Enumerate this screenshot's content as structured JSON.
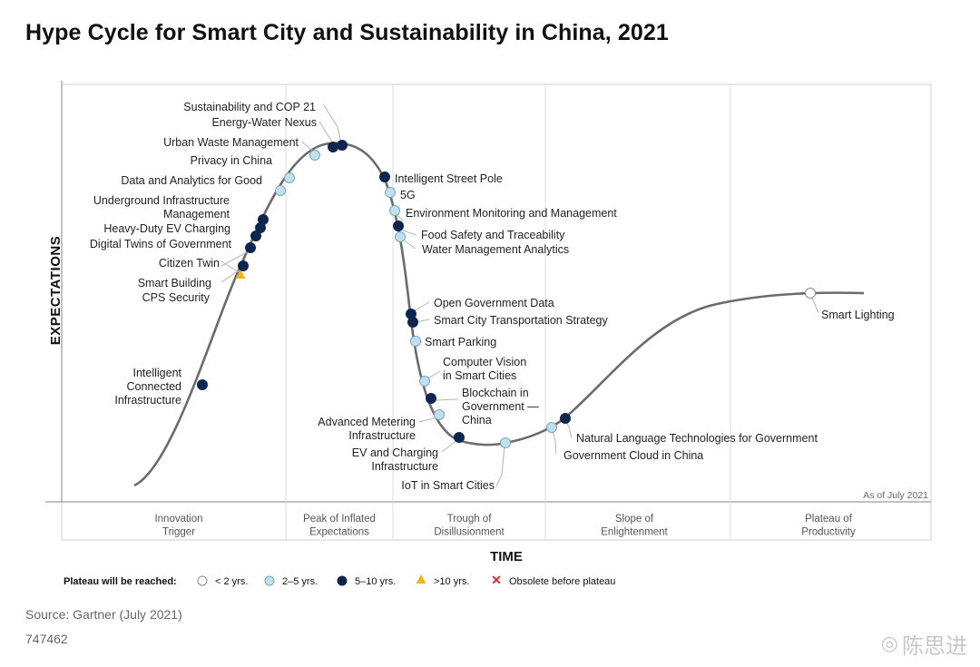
{
  "title": "Hype Cycle for Smart City and Sustainability in China, 2021",
  "source": "Source: Gartner (July 2021)",
  "doc_id": "747462",
  "watermark": "陈思进",
  "chart_data": {
    "type": "scatter",
    "title": "Hype Cycle for Smart City and Sustainability in China, 2021",
    "xlabel": "TIME",
    "ylabel": "EXPECTATIONS",
    "as_of": "As of July 2021",
    "phases": [
      [
        "Innovation",
        "Trigger"
      ],
      [
        "Peak of Inflated",
        "Expectations"
      ],
      [
        "Trough of",
        "Disillusionment"
      ],
      [
        "Slope of",
        "Enlightenment"
      ],
      [
        "Plateau of",
        "Productivity"
      ]
    ],
    "legend": {
      "title": "Plateau will be reached:",
      "items": [
        {
          "key": "lt2",
          "label": "< 2 yrs.",
          "color": "#ffffff"
        },
        {
          "key": "2to5",
          "label": "2–5 yrs.",
          "color": "#bfe0ee"
        },
        {
          "key": "5to10",
          "label": "5–10 yrs.",
          "color": "#0d2650"
        },
        {
          "key": "gt10",
          "label": ">10 yrs.",
          "color": "#f2b41c"
        },
        {
          "key": "obsolete",
          "label": "Obsolete before plateau",
          "color": "#e0282e"
        }
      ]
    },
    "points": [
      {
        "name": "Intelligent Connected Infrastructure",
        "lines": [
          "Intelligent",
          "Connected",
          "Infrastructure"
        ],
        "cat": "5to10"
      },
      {
        "name": "CPS Security",
        "lines": [
          "CPS Security"
        ],
        "cat": "gt10"
      },
      {
        "name": "Smart Building",
        "lines": [
          "Smart Building"
        ],
        "cat": "5to10"
      },
      {
        "name": "Citizen Twin",
        "lines": [
          "Citizen Twin"
        ],
        "cat": "5to10"
      },
      {
        "name": "Digital Twins of Government",
        "lines": [
          "Digital Twins of Government"
        ],
        "cat": "5to10"
      },
      {
        "name": "Heavy-Duty EV Charging",
        "lines": [
          "Heavy-Duty EV Charging"
        ],
        "cat": "5to10"
      },
      {
        "name": "Underground Infrastructure Management",
        "lines": [
          "Underground Infrastructure",
          "Management"
        ],
        "cat": "5to10"
      },
      {
        "name": "Data and Analytics for Good",
        "lines": [
          "Data and Analytics for Good"
        ],
        "cat": "2to5"
      },
      {
        "name": "Privacy in China",
        "lines": [
          "Privacy in China"
        ],
        "cat": "2to5"
      },
      {
        "name": "Urban Waste Management",
        "lines": [
          "Urban Waste Management"
        ],
        "cat": "2to5"
      },
      {
        "name": "Energy-Water Nexus",
        "lines": [
          "Energy-Water Nexus"
        ],
        "cat": "5to10"
      },
      {
        "name": "Sustainability and COP 21",
        "lines": [
          "Sustainability and COP 21"
        ],
        "cat": "5to10"
      },
      {
        "name": "Intelligent Street Pole",
        "lines": [
          "Intelligent Street Pole"
        ],
        "cat": "5to10"
      },
      {
        "name": "5G",
        "lines": [
          "5G"
        ],
        "cat": "2to5"
      },
      {
        "name": "Environment Monitoring and Management",
        "lines": [
          "Environment Monitoring and Management"
        ],
        "cat": "2to5"
      },
      {
        "name": "Food Safety and Traceability",
        "lines": [
          "Food Safety and Traceability"
        ],
        "cat": "5to10"
      },
      {
        "name": "Water Management Analytics",
        "lines": [
          "Water Management Analytics"
        ],
        "cat": "2to5"
      },
      {
        "name": "Open Government Data",
        "lines": [
          "Open Government Data"
        ],
        "cat": "5to10"
      },
      {
        "name": "Smart City Transportation Strategy",
        "lines": [
          "Smart City Transportation Strategy"
        ],
        "cat": "5to10"
      },
      {
        "name": "Smart Parking",
        "lines": [
          "Smart Parking"
        ],
        "cat": "2to5"
      },
      {
        "name": "Computer Vision in Smart Cities",
        "lines": [
          "Computer Vision",
          "in Smart Cities"
        ],
        "cat": "2to5"
      },
      {
        "name": "Blockchain in Government — China",
        "lines": [
          "Blockchain in",
          "Government —",
          "China"
        ],
        "cat": "5to10"
      },
      {
        "name": "Advanced Metering Infrastructure",
        "lines": [
          "Advanced Metering",
          "Infrastructure"
        ],
        "cat": "2to5"
      },
      {
        "name": "EV and Charging Infrastructure",
        "lines": [
          "EV and Charging",
          "Infrastructure"
        ],
        "cat": "5to10"
      },
      {
        "name": "IoT in Smart Cities",
        "lines": [
          "IoT in Smart Cities"
        ],
        "cat": "2to5"
      },
      {
        "name": "Government Cloud in China",
        "lines": [
          "Government Cloud in China"
        ],
        "cat": "2to5"
      },
      {
        "name": "Natural Language Technologies for Government",
        "lines": [
          "Natural Language Technologies for Government"
        ],
        "cat": "5to10"
      },
      {
        "name": "Smart Lighting",
        "lines": [
          "Smart Lighting"
        ],
        "cat": "lt2"
      }
    ]
  }
}
